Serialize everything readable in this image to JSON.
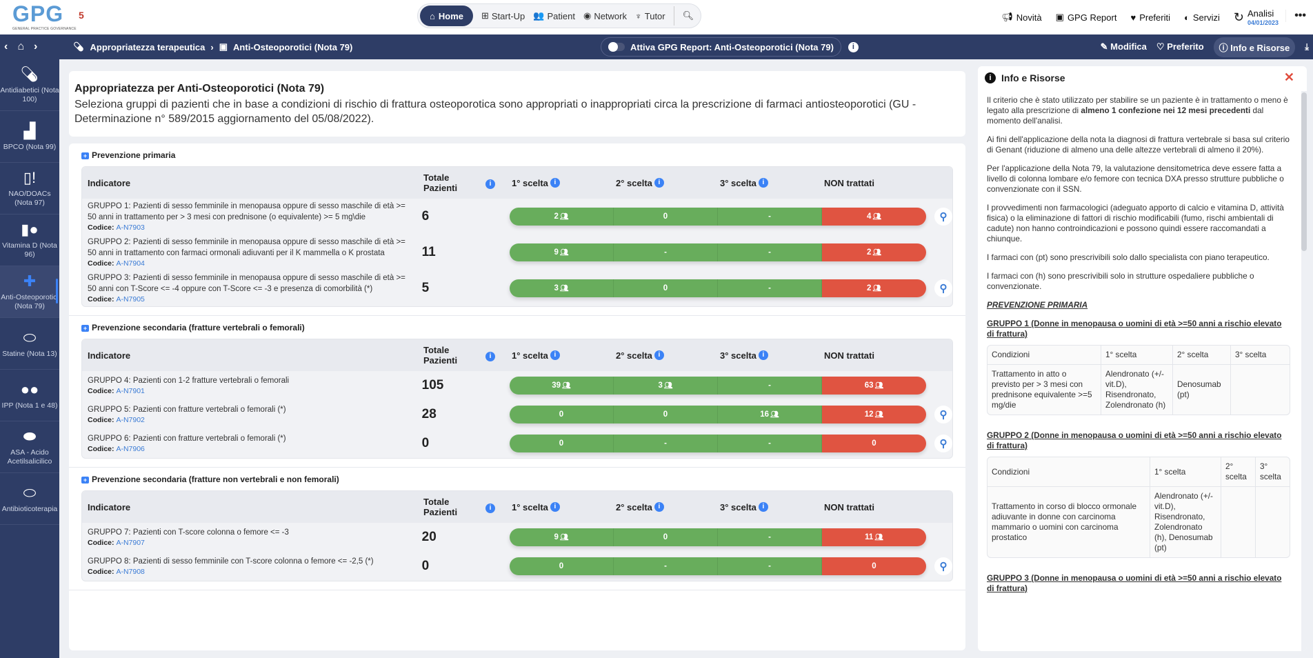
{
  "header": {
    "logo": "GPG",
    "logo_sub": "GENERAL PRACTICE GOVERNANCE",
    "logo_num": "5",
    "nav": [
      {
        "label": "Home",
        "icon": "home-icon"
      },
      {
        "label": "Start-Up",
        "icon": "grid-icon"
      },
      {
        "label": "Patient",
        "icon": "users-icon"
      },
      {
        "label": "Network",
        "icon": "network-icon"
      },
      {
        "label": "Tutor",
        "icon": "tutor-icon"
      }
    ],
    "right": [
      {
        "label": "Novità",
        "icon": "megaphone-icon"
      },
      {
        "label": "GPG Report",
        "icon": "report-icon"
      },
      {
        "label": "Preferiti",
        "icon": "heart-icon"
      },
      {
        "label": "Servizi",
        "icon": "toggle-icon"
      }
    ],
    "analisi_label": "Analisi",
    "analisi_date": "04/01/2023"
  },
  "toolbar": {
    "breadcrumb": [
      "Appropriatezza terapeutica",
      "Anti-Osteoporotici (Nota 79)"
    ],
    "toggle_label": "Attiva GPG Report: Anti-Osteoporotici (Nota 79)",
    "actions": [
      "Modifica",
      "Preferito",
      "Info e Risorse"
    ]
  },
  "sidebar": {
    "items": [
      {
        "label": "Antidiabetici (Nota 100)",
        "icon": "pill-icon",
        "active": false
      },
      {
        "label": "BPCO (Nota 99)",
        "icon": "inhaler-icon",
        "active": false
      },
      {
        "label": "NAO/DOACs (Nota 97)",
        "icon": "capsule-alert-icon",
        "active": false
      },
      {
        "label": "Vitamina D (Nota 96)",
        "icon": "capsule-tablet-icon",
        "active": false
      },
      {
        "label": "Anti-Osteoporotici (Nota 79)",
        "icon": "medkit-icon",
        "active": true
      },
      {
        "label": "Statine (Nota 13)",
        "icon": "pills-icon",
        "active": false
      },
      {
        "label": "IPP (Nota 1 e 48)",
        "icon": "tablets-icon",
        "active": false
      },
      {
        "label": "ASA - Acido Acetilsalicilico",
        "icon": "pill-tablet-icon",
        "active": false
      },
      {
        "label": "Antibioticoterapia",
        "icon": "capsule-icon",
        "active": false
      }
    ]
  },
  "page": {
    "title": "Appropriatezza per Anti-Osteoporotici (Nota 79)",
    "description": "Seleziona gruppi di pazienti che in base a condizioni di rischio di frattura osteoporotica sono appropriati o inappropriati circa la prescrizione di farmaci antiosteoporotici (GU - Determinazione n° 589/2015 aggiornamento del 05/08/2022)."
  },
  "table_headers": {
    "indicatore": "Indicatore",
    "totale": "Totale Pazienti",
    "s1": "1° scelta",
    "s2": "2° scelta",
    "s3": "3° scelta",
    "non": "NON trattati",
    "code_label": "Codice:"
  },
  "colors": {
    "green": "#68ad5c",
    "red": "#e05441",
    "navy": "#2e3d66",
    "accent": "#3b82f6"
  },
  "sections": [
    {
      "title": "Prevenzione primaria",
      "rows": [
        {
          "label": "GRUPPO 1: Pazienti di sesso femminile in menopausa oppure di sesso maschile di età >= 50 anni in trattamento per > 3 mesi con prednisone (o equivalente) >= 5 mg\\die",
          "code": "A-N7903",
          "total": "6",
          "values": [
            "2",
            "0",
            "-",
            "4"
          ],
          "search": true
        },
        {
          "label": "GRUPPO 2: Pazienti di sesso femminile in menopausa oppure di sesso maschile di età >= 50 anni in trattamento con farmaci ormonali adiuvanti per il K mammella o K prostata",
          "code": "A-N7904",
          "total": "11",
          "values": [
            "9",
            "-",
            "-",
            "2"
          ],
          "search": false
        },
        {
          "label": "GRUPPO 3: Pazienti di sesso femminile in menopausa oppure di sesso maschile di età >= 50 anni con T-Score <= -4 oppure con T-Score <= -3 e presenza di comorbilità (*)",
          "code": "A-N7905",
          "total": "5",
          "values": [
            "3",
            "0",
            "-",
            "2"
          ],
          "search": true
        }
      ]
    },
    {
      "title": "Prevenzione secondaria (fratture vertebrali o femorali)",
      "rows": [
        {
          "label": "GRUPPO 4: Pazienti con 1-2 fratture vertebrali o femorali",
          "code": "A-N7901",
          "total": "105",
          "values": [
            "39",
            "3",
            "-",
            "63"
          ],
          "search": false
        },
        {
          "label": "GRUPPO 5: Pazienti con fratture vertebrali o femorali (*)",
          "code": "A-N7902",
          "total": "28",
          "values": [
            "0",
            "0",
            "16",
            "12"
          ],
          "search": true
        },
        {
          "label": "GRUPPO 6: Pazienti con fratture vertebrali o femorali (*)",
          "code": "A-N7906",
          "total": "0",
          "values": [
            "0",
            "-",
            "-",
            "0"
          ],
          "search": true
        }
      ]
    },
    {
      "title": "Prevenzione secondaria (fratture non vertebrali e non femorali)",
      "rows": [
        {
          "label": "GRUPPO 7: Pazienti con T-score colonna o femore <= -3",
          "code": "A-N7907",
          "total": "20",
          "values": [
            "9",
            "0",
            "-",
            "11"
          ],
          "search": false
        },
        {
          "label": "GRUPPO 8: Pazienti di sesso femminile con T-score colonna o femore <= -2,5 (*)",
          "code": "A-N7908",
          "total": "0",
          "values": [
            "0",
            "-",
            "-",
            "0"
          ],
          "search": true
        }
      ]
    }
  ],
  "panel": {
    "title": "Info e Risorse",
    "p1_a": "Il criterio che è stato utilizzato per stabilire se un paziente è in trattamento o meno è legato alla prescrizione di ",
    "p1_b": "almeno 1 confezione nei 12 mesi precedenti",
    "p1_c": " dal momento dell'analisi.",
    "p2": "Ai fini dell'applicazione della nota la diagnosi di frattura vertebrale si basa sul criterio di Genant (riduzione di almeno una delle altezze vertebrali di almeno il 20%).",
    "p3": "Per l'applicazione della Nota 79, la valutazione densitometrica deve essere fatta a livello di colonna lombare e/o femore con tecnica DXA presso strutture pubbliche o convenzionate con il SSN.",
    "p4": "I provvedimenti non farmacologici (adeguato apporto di calcio e vitamina D, attività fisica) o la eliminazione di fattori di rischio modificabili (fumo, rischi ambientali di cadute) non hanno controindicazioni e possono quindi essere raccomandati a chiunque.",
    "p5": "I farmaci con (pt) sono prescrivibili solo dallo specialista con piano terapeutico.",
    "p6": "I farmaci con (h) sono prescrivibili solo in strutture ospedaliere pubbliche o convenzionate.",
    "heading": "PREVENZIONE PRIMARIA",
    "g1_title": "GRUPPO 1 (Donne in menopausa o uomini di età >=50 anni a rischio elevato di frattura)",
    "g1_table": {
      "headers": [
        "Condizioni",
        "1° scelta",
        "2° scelta",
        "3° scelta"
      ],
      "row": [
        "Trattamento in atto o previsto per > 3 mesi con prednisone equivalente >=5 mg/die",
        "Alendronato (+/- vit.D), Risendronato, Zolendronato (h)",
        "Denosumab (pt)",
        ""
      ]
    },
    "g2_title": "GRUPPO 2 (Donne in menopausa o uomini di età >=50 anni a rischio elevato di frattura)",
    "g2_table": {
      "headers": [
        "Condizioni",
        "1° scelta",
        "2° scelta",
        "3° scelta"
      ],
      "row": [
        "Trattamento in corso di blocco ormonale adiuvante in donne con carcinoma mammario o uomini con carcinoma prostatico",
        "Alendronato (+/- vit.D), Risendronato, Zolendronato (h), Denosumab (pt)",
        "",
        ""
      ]
    },
    "g3_title": "GRUPPO 3 (Donne in menopausa o uomini di età >=50 anni a rischio elevato di frattura)"
  }
}
